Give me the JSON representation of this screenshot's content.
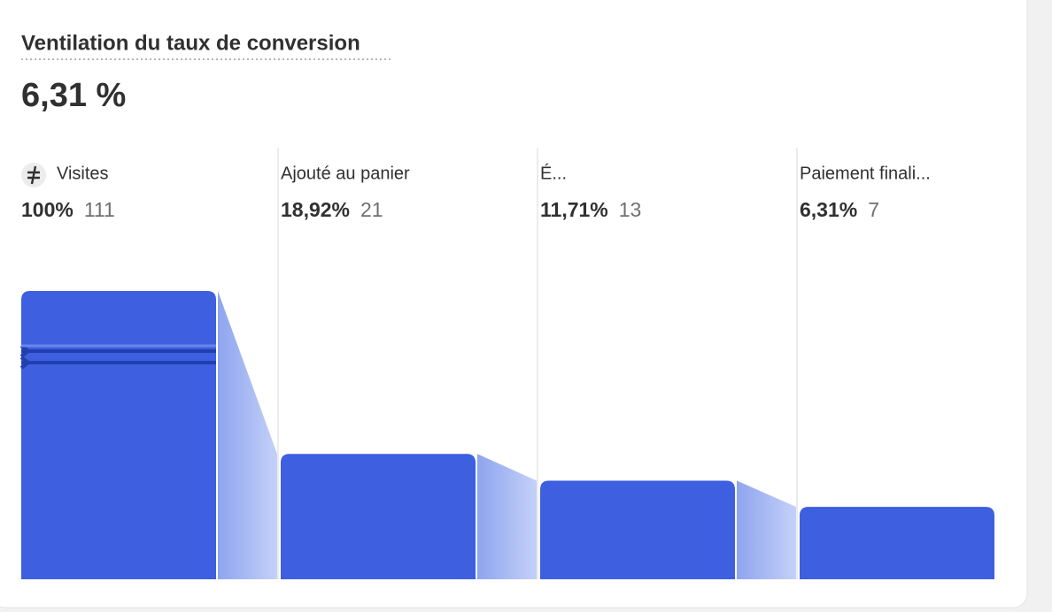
{
  "chart_data": {
    "type": "funnel",
    "title": "Ventilation du taux de conversion",
    "headline": "6,31 %",
    "categories": [
      "Visites",
      "Ajouté au panier",
      "É...",
      "Paiement finali..."
    ],
    "values": [
      100,
      18.92,
      11.71,
      6.31
    ],
    "value_labels": [
      "100%",
      "18,92%",
      "11,71%",
      "6,31%"
    ],
    "counts": [
      111,
      21,
      13,
      7
    ],
    "ylim": [
      0,
      100
    ],
    "scale": "sqrt",
    "color": "#3d5fe0"
  }
}
